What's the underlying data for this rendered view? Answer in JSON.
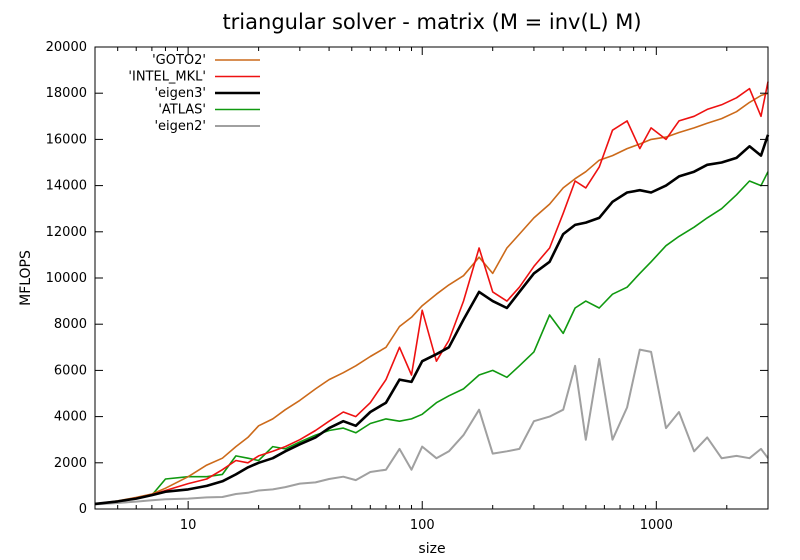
{
  "chart_data": {
    "type": "line",
    "title": "triangular solver - matrix (M = inv(L) M)",
    "xlabel": "size",
    "ylabel": "MFLOPS",
    "xscale": "log",
    "xlim": [
      4,
      3000
    ],
    "ylim": [
      0,
      20000
    ],
    "x_ticks": [
      10,
      100,
      1000
    ],
    "x_tick_labels": [
      "10",
      "100",
      "1000"
    ],
    "y_ticks": [
      0,
      2000,
      4000,
      6000,
      8000,
      10000,
      12000,
      14000,
      16000,
      18000,
      20000
    ],
    "y_tick_labels": [
      "0",
      "2000",
      "4000",
      "6000",
      "8000",
      "10000",
      "12000",
      "14000",
      "16000",
      "18000",
      "20000"
    ],
    "legend_position": "top-left",
    "series": [
      {
        "name": "'GOTO2'",
        "color": "#cc6a1a",
        "x": [
          4,
          5,
          6,
          7,
          8,
          10,
          12,
          14,
          16,
          18,
          20,
          23,
          26,
          30,
          35,
          40,
          46,
          52,
          60,
          70,
          80,
          90,
          100,
          115,
          130,
          150,
          175,
          200,
          230,
          260,
          300,
          350,
          400,
          450,
          500,
          570,
          650,
          750,
          850,
          950,
          1100,
          1250,
          1450,
          1650,
          1900,
          2200,
          2500,
          2800,
          3000
        ],
        "values": [
          220,
          350,
          500,
          650,
          900,
          1400,
          1900,
          2200,
          2700,
          3100,
          3600,
          3900,
          4300,
          4700,
          5200,
          5600,
          5900,
          6200,
          6600,
          7000,
          7900,
          8300,
          8800,
          9300,
          9700,
          10100,
          10900,
          10200,
          11300,
          11900,
          12600,
          13200,
          13900,
          14300,
          14600,
          15100,
          15300,
          15600,
          15800,
          16000,
          16100,
          16300,
          16500,
          16700,
          16900,
          17200,
          17600,
          17900,
          18000
        ]
      },
      {
        "name": "'INTEL_MKL'",
        "color": "#ee1111",
        "x": [
          4,
          5,
          6,
          7,
          8,
          10,
          12,
          14,
          16,
          18,
          20,
          23,
          26,
          30,
          35,
          40,
          46,
          52,
          60,
          70,
          80,
          90,
          100,
          115,
          130,
          150,
          175,
          200,
          230,
          260,
          300,
          350,
          400,
          450,
          500,
          570,
          650,
          750,
          850,
          950,
          1100,
          1250,
          1450,
          1650,
          1900,
          2200,
          2500,
          2800,
          3000
        ],
        "values": [
          220,
          330,
          470,
          620,
          800,
          1100,
          1300,
          1700,
          2100,
          2000,
          2300,
          2500,
          2700,
          3000,
          3400,
          3800,
          4200,
          4000,
          4600,
          5600,
          7000,
          5800,
          8600,
          6400,
          7300,
          9000,
          11300,
          9400,
          9000,
          9600,
          10500,
          11300,
          12800,
          14200,
          13900,
          14800,
          16400,
          16800,
          15600,
          16500,
          16000,
          16800,
          17000,
          17300,
          17500,
          17800,
          18200,
          17000,
          18500
        ]
      },
      {
        "name": "'eigen3'",
        "color": "#000000",
        "x": [
          4,
          5,
          6,
          7,
          8,
          10,
          12,
          14,
          16,
          18,
          20,
          23,
          26,
          30,
          35,
          40,
          46,
          52,
          60,
          70,
          80,
          90,
          100,
          115,
          130,
          150,
          175,
          200,
          230,
          260,
          300,
          350,
          400,
          450,
          500,
          570,
          650,
          750,
          850,
          950,
          1100,
          1250,
          1450,
          1650,
          1900,
          2200,
          2500,
          2800,
          3000
        ],
        "values": [
          220,
          330,
          450,
          600,
          750,
          850,
          1000,
          1200,
          1500,
          1800,
          2000,
          2200,
          2500,
          2800,
          3100,
          3500,
          3800,
          3600,
          4200,
          4600,
          5600,
          5500,
          6400,
          6700,
          7000,
          8200,
          9400,
          9000,
          8700,
          9400,
          10200,
          10700,
          11900,
          12300,
          12400,
          12600,
          13300,
          13700,
          13800,
          13700,
          14000,
          14400,
          14600,
          14900,
          15000,
          15200,
          15700,
          15300,
          16200
        ]
      },
      {
        "name": "'ATLAS'",
        "color": "#109910",
        "x": [
          4,
          5,
          6,
          7,
          8,
          10,
          12,
          14,
          16,
          18,
          20,
          23,
          26,
          30,
          35,
          40,
          46,
          52,
          60,
          70,
          80,
          90,
          100,
          115,
          130,
          150,
          175,
          200,
          230,
          260,
          300,
          350,
          400,
          450,
          500,
          570,
          650,
          750,
          850,
          950,
          1100,
          1250,
          1450,
          1650,
          1900,
          2200,
          2500,
          2800,
          3000
        ],
        "values": [
          220,
          330,
          450,
          600,
          1300,
          1400,
          1400,
          1500,
          2300,
          2200,
          2100,
          2700,
          2600,
          2900,
          3200,
          3400,
          3500,
          3300,
          3700,
          3900,
          3800,
          3900,
          4100,
          4600,
          4900,
          5200,
          5800,
          6000,
          5700,
          6200,
          6800,
          8400,
          7600,
          8700,
          9000,
          8700,
          9300,
          9600,
          10200,
          10700,
          11400,
          11800,
          12200,
          12600,
          13000,
          13600,
          14200,
          14000,
          14600
        ]
      },
      {
        "name": "'eigen2'",
        "color": "#a0a0a0",
        "x": [
          4,
          5,
          6,
          7,
          8,
          10,
          12,
          14,
          16,
          18,
          20,
          23,
          26,
          30,
          35,
          40,
          46,
          52,
          60,
          70,
          80,
          90,
          100,
          115,
          130,
          150,
          175,
          200,
          230,
          260,
          300,
          350,
          400,
          450,
          500,
          570,
          650,
          750,
          850,
          950,
          1100,
          1250,
          1450,
          1650,
          1900,
          2200,
          2500,
          2800,
          3000
        ],
        "values": [
          200,
          260,
          320,
          380,
          420,
          450,
          500,
          520,
          650,
          700,
          800,
          850,
          950,
          1100,
          1150,
          1300,
          1400,
          1250,
          1600,
          1700,
          2600,
          1700,
          2700,
          2200,
          2500,
          3200,
          4300,
          2400,
          2500,
          2600,
          3800,
          4000,
          4300,
          6200,
          3000,
          6500,
          3000,
          4400,
          6900,
          6800,
          3500,
          4200,
          2500,
          3100,
          2200,
          2300,
          2200,
          2600,
          2200
        ]
      }
    ]
  }
}
